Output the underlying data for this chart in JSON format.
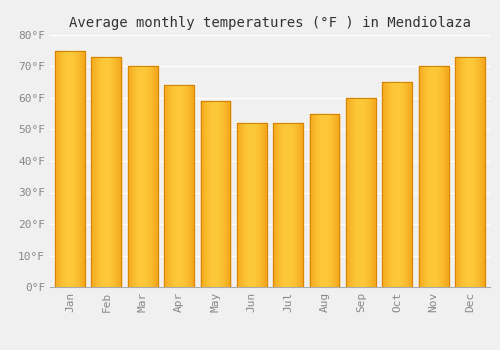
{
  "title": "Average monthly temperatures (°F ) in Mendiolaza",
  "months": [
    "Jan",
    "Feb",
    "Mar",
    "Apr",
    "May",
    "Jun",
    "Jul",
    "Aug",
    "Sep",
    "Oct",
    "Nov",
    "Dec"
  ],
  "values": [
    75,
    73,
    70,
    64,
    59,
    52,
    52,
    55,
    60,
    65,
    70,
    73
  ],
  "bar_color_center": "#FDC93A",
  "bar_color_edge": "#F0920A",
  "ylim": [
    0,
    80
  ],
  "yticks": [
    0,
    10,
    20,
    30,
    40,
    50,
    60,
    70,
    80
  ],
  "ytick_labels": [
    "0°F",
    "10°F",
    "20°F",
    "30°F",
    "40°F",
    "50°F",
    "60°F",
    "70°F",
    "80°F"
  ],
  "background_color": "#f0f0f0",
  "grid_color": "#ffffff",
  "title_fontsize": 10,
  "tick_fontsize": 8,
  "tick_color": "#888888"
}
